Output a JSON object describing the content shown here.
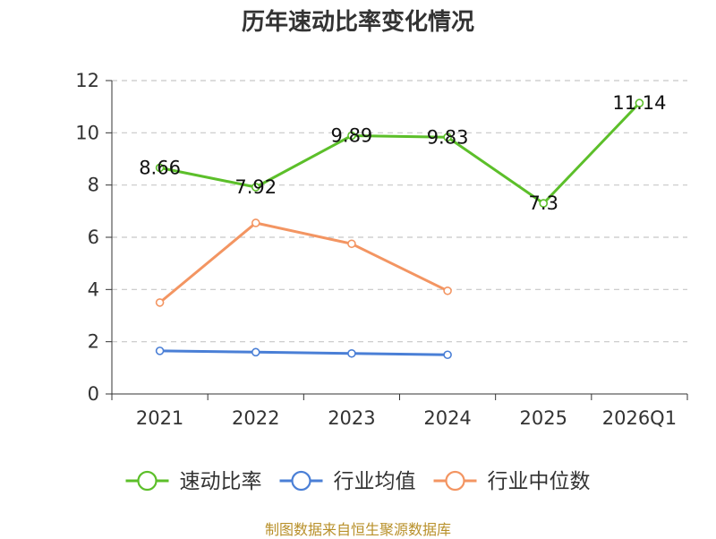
{
  "chart_data": {
    "type": "line",
    "title": "历年速动比率变化情况",
    "categories": [
      "2021",
      "2022",
      "2023",
      "2024",
      "2025",
      "2026Q1"
    ],
    "ylim": [
      0,
      12
    ],
    "yticks": [
      0,
      2,
      4,
      6,
      8,
      10,
      12
    ],
    "grid": true,
    "legend_position": "bottom",
    "series": [
      {
        "name": "速动比率",
        "color": "#5cbf2a",
        "values": [
          8.66,
          7.92,
          9.89,
          9.83,
          7.3,
          11.14
        ],
        "labels": [
          "8.66",
          "7.92",
          "9.89",
          "9.83",
          "7.3",
          "11.14"
        ],
        "show_labels": true
      },
      {
        "name": "行业均值",
        "color": "#4a7fd6",
        "values": [
          1.65,
          1.6,
          1.55,
          1.5,
          null,
          null
        ],
        "show_labels": false
      },
      {
        "name": "行业中位数",
        "color": "#f39562",
        "values": [
          3.5,
          6.55,
          5.75,
          3.95,
          null,
          null
        ],
        "show_labels": false
      }
    ]
  },
  "footer": {
    "source": "制图数据来自恒生聚源数据库"
  }
}
